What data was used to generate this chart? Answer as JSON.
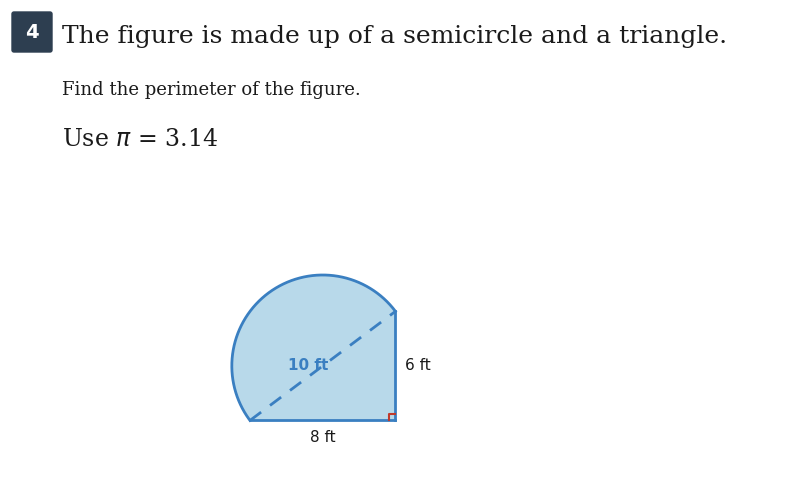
{
  "title": "The figure is made up of a semicircle and a triangle.",
  "subtitle": "Find the perimeter of the figure.",
  "question_num": "4",
  "label_10ft": "10 ft",
  "label_6ft": "6 ft",
  "label_8ft": "8 ft",
  "fill_color": "#b8d9ea",
  "stroke_color": "#3a7fc1",
  "dashed_color": "#3a7fc1",
  "right_angle_color": "#c0392b",
  "num_box_color": "#2d3e50",
  "background_color": "#ffffff",
  "text_color": "#1a1a1a",
  "fig_width": 8.0,
  "fig_height": 4.92,
  "dpi": 100
}
